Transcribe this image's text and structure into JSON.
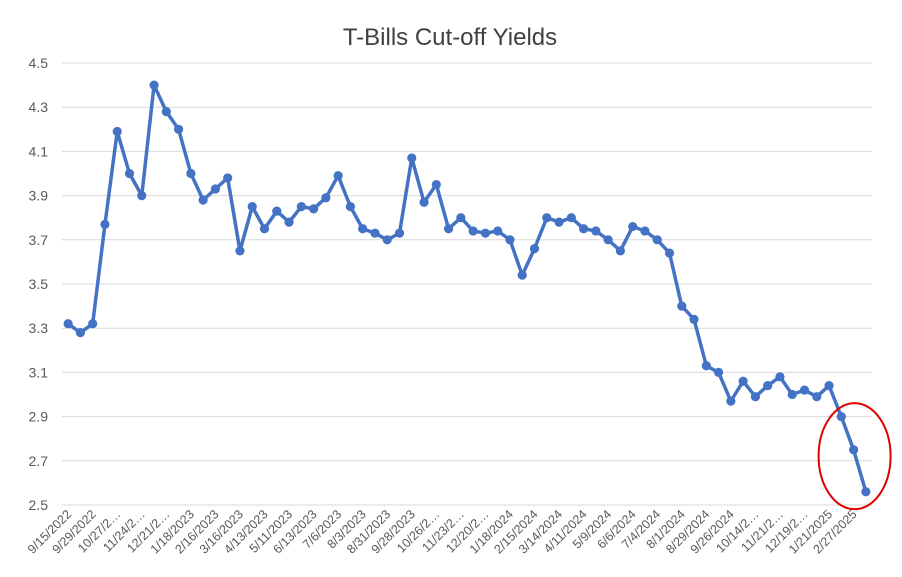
{
  "chart_data": {
    "type": "line",
    "title": "T-Bills Cut-off Yields",
    "xlabel": "",
    "ylabel": "",
    "ylim": [
      2.5,
      4.5
    ],
    "yticks": [
      "2.5",
      "2.7",
      "2.9",
      "3.1",
      "3.3",
      "3.5",
      "3.7",
      "3.9",
      "4.1",
      "4.3",
      "4.5"
    ],
    "grid": true,
    "legend": "none",
    "tick_labels": [
      "9/15/2022",
      "9/29/2022",
      "10/27/2…",
      "11/24/2…",
      "12/21/2…",
      "1/18/2023",
      "2/16/2023",
      "3/16/2023",
      "4/13/2023",
      "5/11/2023",
      "6/13/2023",
      "7/6/2023",
      "8/3/2023",
      "8/31/2023",
      "9/28/2023",
      "10/26/2…",
      "11/23/2…",
      "12/20/2…",
      "1/18/2024",
      "2/15/2024",
      "3/14/2024",
      "4/11/2024",
      "5/9/2024",
      "6/6/2024",
      "7/4/2024",
      "8/1/2024",
      "8/29/2024",
      "9/26/2024",
      "10/14/2…",
      "11/21/2…",
      "12/19/2…",
      "1/21/2025",
      "2/27/2025"
    ],
    "tick_positions": [
      0,
      2,
      4,
      6,
      8,
      10,
      12,
      14,
      16,
      18,
      20,
      22,
      24,
      26,
      28,
      30,
      32,
      34,
      36,
      38,
      40,
      42,
      44,
      46,
      48,
      50,
      52,
      54,
      56,
      58,
      60,
      62,
      64
    ],
    "series": [
      {
        "values": [
          3.32,
          3.28,
          3.32,
          3.77,
          4.19,
          4.0,
          3.9,
          4.4,
          4.28,
          4.2,
          4.0,
          3.88,
          3.93,
          3.98,
          3.65,
          3.85,
          3.75,
          3.83,
          3.78,
          3.85,
          3.84,
          3.89,
          3.99,
          3.85,
          3.75,
          3.73,
          3.7,
          3.73,
          4.07,
          3.87,
          3.95,
          3.75,
          3.8,
          3.74,
          3.73,
          3.74,
          3.7,
          3.54,
          3.66,
          3.8,
          3.78,
          3.8,
          3.75,
          3.74,
          3.7,
          3.65,
          3.76,
          3.74,
          3.7,
          3.64,
          3.4,
          3.34,
          3.13,
          3.1,
          2.97,
          3.06,
          2.99,
          3.04,
          3.08,
          3.0,
          3.02,
          2.99,
          3.04,
          2.9,
          2.75,
          2.56
        ]
      }
    ],
    "colors": {
      "line": "#4472c4",
      "highlight": "#e00000"
    }
  }
}
